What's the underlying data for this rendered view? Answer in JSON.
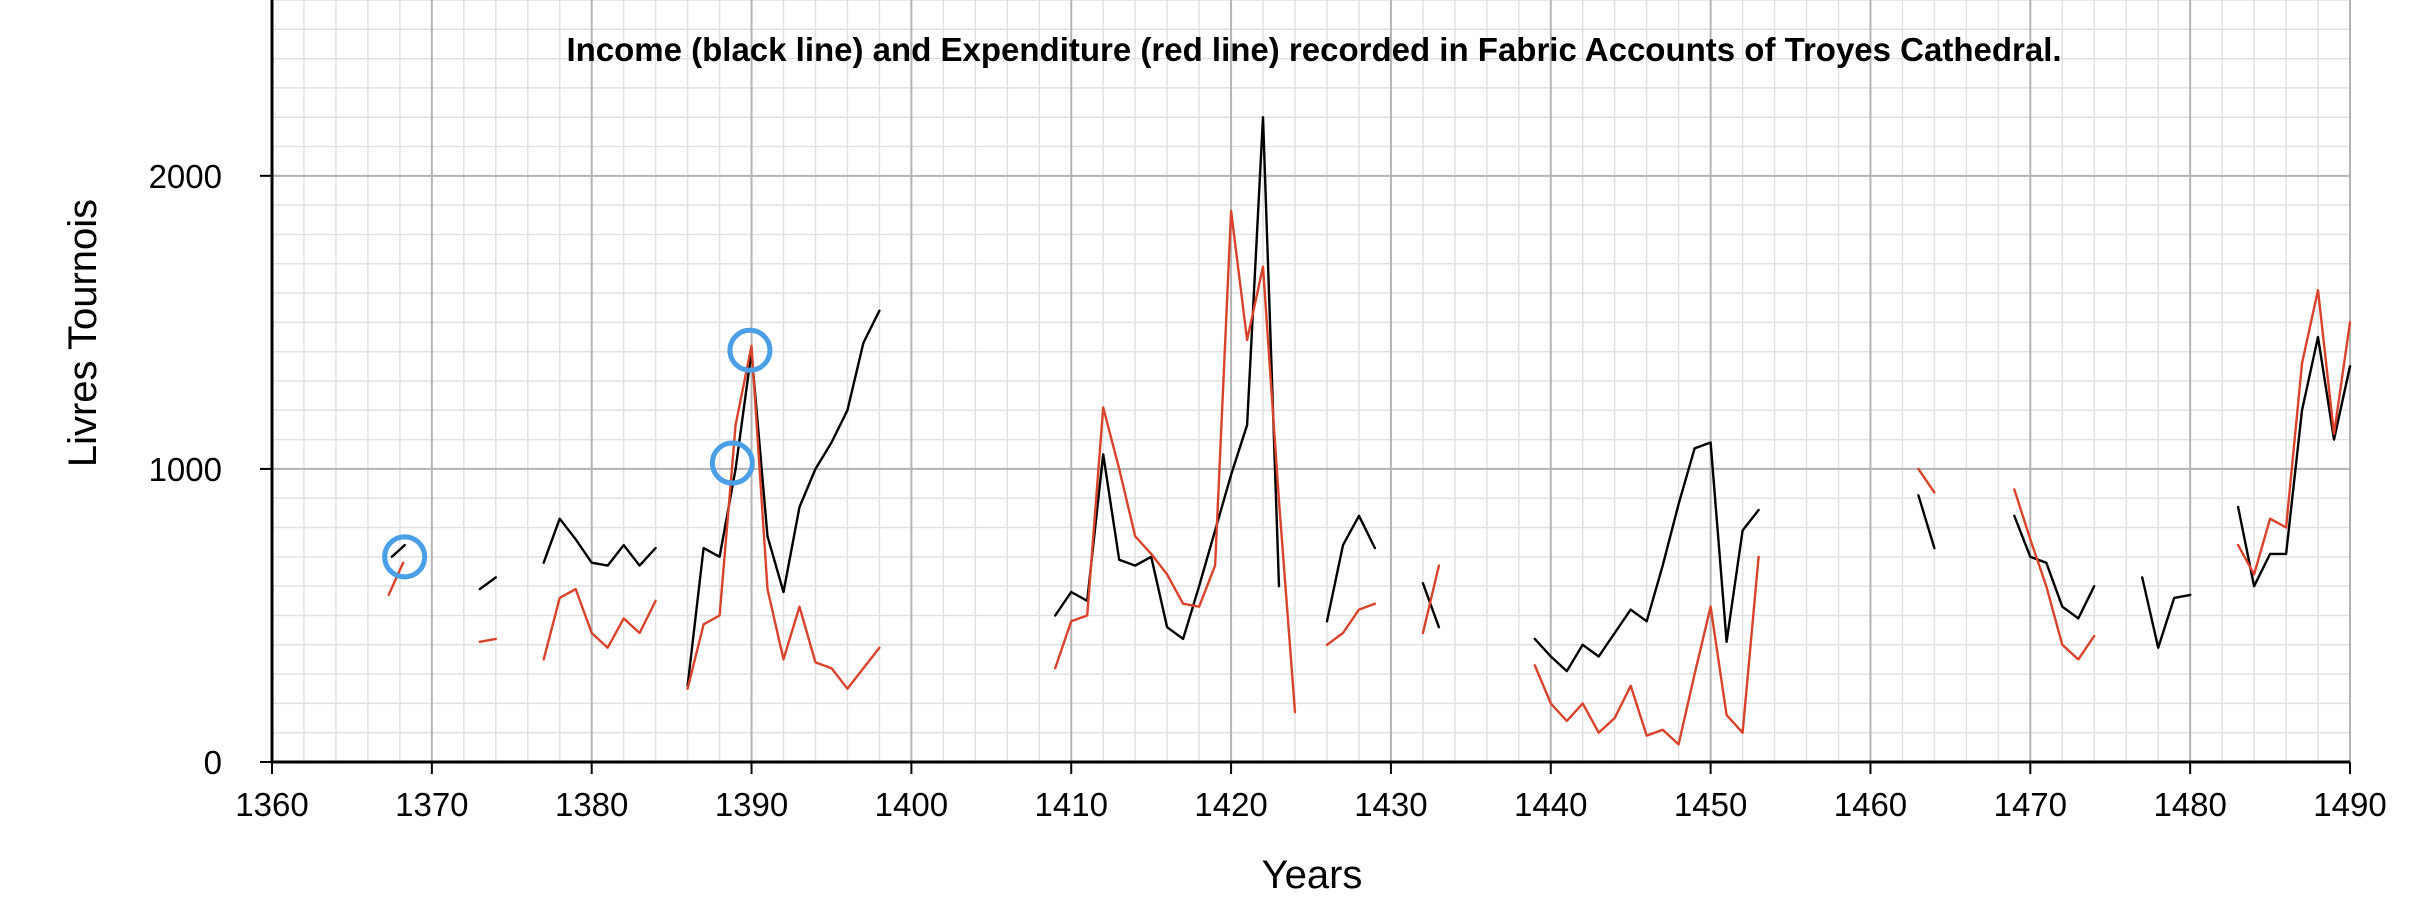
{
  "chart_data": {
    "type": "line",
    "title": "Income (black line) and Expenditure (red line) recorded in Fabric Accounts of Troyes Cathedral.",
    "xlabel": "Years",
    "ylabel": "Livres Tournois",
    "xlim": [
      1360,
      1490
    ],
    "ylim": [
      0,
      2600
    ],
    "x_ticks": [
      1360,
      1370,
      1380,
      1390,
      1400,
      1410,
      1420,
      1430,
      1440,
      1450,
      1460,
      1470,
      1480,
      1490
    ],
    "y_ticks": [
      0,
      1000,
      2000
    ],
    "grid": true,
    "series": [
      {
        "color": "#000000",
        "segments": [
          [
            [
              1367.5,
              700
            ],
            [
              1368.3,
              740
            ]
          ],
          [
            [
              1373,
              590
            ],
            [
              1374,
              630
            ]
          ],
          [
            [
              1377,
              680
            ],
            [
              1378,
              830
            ],
            [
              1379,
              760
            ],
            [
              1380,
              680
            ],
            [
              1381,
              670
            ],
            [
              1382,
              740
            ],
            [
              1383,
              670
            ],
            [
              1384,
              730
            ]
          ],
          [
            [
              1386,
              260
            ],
            [
              1387,
              730
            ],
            [
              1388,
              700
            ],
            [
              1389,
              1000
            ],
            [
              1390,
              1400
            ],
            [
              1391,
              770
            ],
            [
              1392,
              580
            ],
            [
              1393,
              870
            ],
            [
              1394,
              1000
            ],
            [
              1395,
              1090
            ],
            [
              1396,
              1200
            ],
            [
              1397,
              1430
            ],
            [
              1398,
              1540
            ]
          ],
          [
            [
              1409,
              500
            ],
            [
              1410,
              580
            ],
            [
              1411,
              550
            ],
            [
              1412,
              1050
            ],
            [
              1413,
              690
            ],
            [
              1414,
              670
            ],
            [
              1415,
              700
            ],
            [
              1416,
              460
            ],
            [
              1417,
              420
            ],
            [
              1418,
              600
            ],
            [
              1419,
              790
            ],
            [
              1420,
              980
            ],
            [
              1421,
              1150
            ],
            [
              1422,
              2200
            ],
            [
              1423,
              600
            ]
          ],
          [
            [
              1426,
              480
            ],
            [
              1427,
              740
            ],
            [
              1428,
              840
            ],
            [
              1429,
              730
            ]
          ],
          [
            [
              1432,
              610
            ],
            [
              1433,
              460
            ]
          ],
          [
            [
              1439,
              420
            ],
            [
              1440,
              360
            ],
            [
              1441,
              310
            ],
            [
              1442,
              400
            ],
            [
              1443,
              360
            ],
            [
              1444,
              440
            ],
            [
              1445,
              520
            ],
            [
              1446,
              480
            ],
            [
              1447,
              670
            ],
            [
              1448,
              880
            ],
            [
              1449,
              1070
            ],
            [
              1450,
              1090
            ],
            [
              1451,
              410
            ],
            [
              1452,
              790
            ],
            [
              1453,
              860
            ]
          ],
          [
            [
              1463,
              910
            ],
            [
              1464,
              730
            ]
          ],
          [
            [
              1469,
              840
            ],
            [
              1470,
              700
            ],
            [
              1471,
              680
            ],
            [
              1472,
              530
            ],
            [
              1473,
              490
            ],
            [
              1474,
              600
            ]
          ],
          [
            [
              1477,
              630
            ],
            [
              1478,
              390
            ],
            [
              1479,
              560
            ],
            [
              1480,
              570
            ]
          ],
          [
            [
              1483,
              870
            ],
            [
              1484,
              600
            ],
            [
              1485,
              710
            ],
            [
              1486,
              710
            ],
            [
              1487,
              1200
            ],
            [
              1488,
              1450
            ],
            [
              1489,
              1100
            ],
            [
              1490,
              1350
            ]
          ]
        ]
      },
      {
        "color": "#d9432b",
        "segments": [
          [
            [
              1367.3,
              570
            ],
            [
              1368.2,
              680
            ]
          ],
          [
            [
              1373,
              410
            ],
            [
              1374,
              420
            ]
          ],
          [
            [
              1377,
              350
            ],
            [
              1378,
              560
            ],
            [
              1379,
              590
            ],
            [
              1380,
              440
            ],
            [
              1381,
              390
            ],
            [
              1382,
              490
            ],
            [
              1383,
              440
            ],
            [
              1384,
              550
            ]
          ],
          [
            [
              1386,
              250
            ],
            [
              1387,
              470
            ],
            [
              1388,
              500
            ],
            [
              1389,
              1150
            ],
            [
              1390,
              1420
            ],
            [
              1391,
              590
            ],
            [
              1392,
              350
            ],
            [
              1393,
              530
            ],
            [
              1394,
              340
            ],
            [
              1395,
              320
            ],
            [
              1396,
              250
            ],
            [
              1397,
              320
            ],
            [
              1398,
              390
            ]
          ],
          [
            [
              1409,
              320
            ],
            [
              1410,
              480
            ],
            [
              1411,
              500
            ],
            [
              1412,
              1210
            ],
            [
              1413,
              1000
            ],
            [
              1414,
              770
            ],
            [
              1415,
              710
            ],
            [
              1416,
              640
            ],
            [
              1417,
              540
            ],
            [
              1418,
              530
            ],
            [
              1419,
              670
            ],
            [
              1420,
              1880
            ],
            [
              1421,
              1440
            ],
            [
              1422,
              1690
            ],
            [
              1423,
              890
            ],
            [
              1424,
              170
            ]
          ],
          [
            [
              1426,
              400
            ],
            [
              1427,
              440
            ],
            [
              1428,
              520
            ],
            [
              1429,
              540
            ]
          ],
          [
            [
              1432,
              440
            ],
            [
              1433,
              670
            ]
          ],
          [
            [
              1439,
              330
            ],
            [
              1440,
              200
            ],
            [
              1441,
              140
            ],
            [
              1442,
              200
            ],
            [
              1443,
              100
            ],
            [
              1444,
              150
            ],
            [
              1445,
              260
            ],
            [
              1446,
              90
            ],
            [
              1447,
              110
            ],
            [
              1448,
              60
            ],
            [
              1449,
              300
            ],
            [
              1450,
              530
            ],
            [
              1451,
              160
            ],
            [
              1452,
              100
            ],
            [
              1453,
              700
            ]
          ],
          [
            [
              1463,
              1000
            ],
            [
              1464,
              920
            ]
          ],
          [
            [
              1469,
              930
            ],
            [
              1470,
              760
            ],
            [
              1471,
              600
            ],
            [
              1472,
              400
            ],
            [
              1473,
              350
            ],
            [
              1474,
              430
            ]
          ],
          [
            [
              1483,
              740
            ],
            [
              1484,
              640
            ],
            [
              1485,
              830
            ],
            [
              1486,
              800
            ],
            [
              1487,
              1360
            ],
            [
              1488,
              1610
            ],
            [
              1489,
              1120
            ],
            [
              1490,
              1500
            ]
          ]
        ]
      }
    ],
    "annotations": [
      {
        "shape": "circle",
        "x": 1368.3,
        "y": 700,
        "color": "#4a9fe6"
      },
      {
        "shape": "circle",
        "x": 1388.8,
        "y": 1020,
        "color": "#4a9fe6"
      },
      {
        "shape": "circle",
        "x": 1389.9,
        "y": 1405,
        "color": "#4a9fe6"
      }
    ]
  }
}
